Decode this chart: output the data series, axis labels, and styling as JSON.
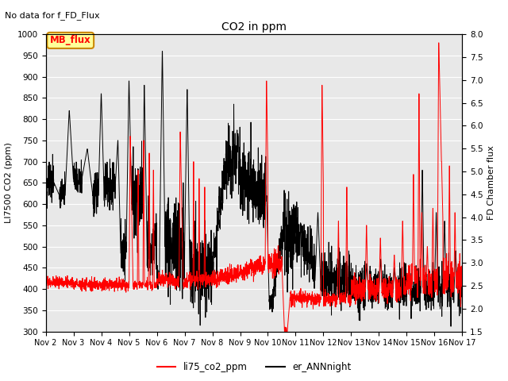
{
  "title": "CO2 in ppm",
  "subtitle": "No data for f_FD_Flux",
  "ylabel_left": "LI7500 CO2 (ppm)",
  "ylabel_right": "FD Chamber flux",
  "ylim_left": [
    300,
    1000
  ],
  "ylim_right": [
    1.5,
    8.0
  ],
  "yticks_left": [
    300,
    350,
    400,
    450,
    500,
    550,
    600,
    650,
    700,
    750,
    800,
    850,
    900,
    950,
    1000
  ],
  "yticks_right": [
    1.5,
    2.0,
    2.5,
    3.0,
    3.5,
    4.0,
    4.5,
    5.0,
    5.5,
    6.0,
    6.5,
    7.0,
    7.5,
    8.0
  ],
  "xlim": [
    0,
    15
  ],
  "xtick_labels": [
    "Nov 2",
    "Nov 3",
    "Nov 4",
    "Nov 5",
    "Nov 6",
    "Nov 7",
    "Nov 8",
    "Nov 9",
    "Nov 10",
    "Nov 11",
    "Nov 12",
    "Nov 13",
    "Nov 14",
    "Nov 15",
    "Nov 16",
    "Nov 17"
  ],
  "legend_box_label": "MB_flux",
  "legend_box_color": "#ffff99",
  "legend_box_border": "#cc8800",
  "line1_color": "#ff0000",
  "line2_color": "#000000",
  "line1_label": "li75_co2_ppm",
  "line2_label": "er_ANNnight",
  "background_color": "#e8e8e8"
}
